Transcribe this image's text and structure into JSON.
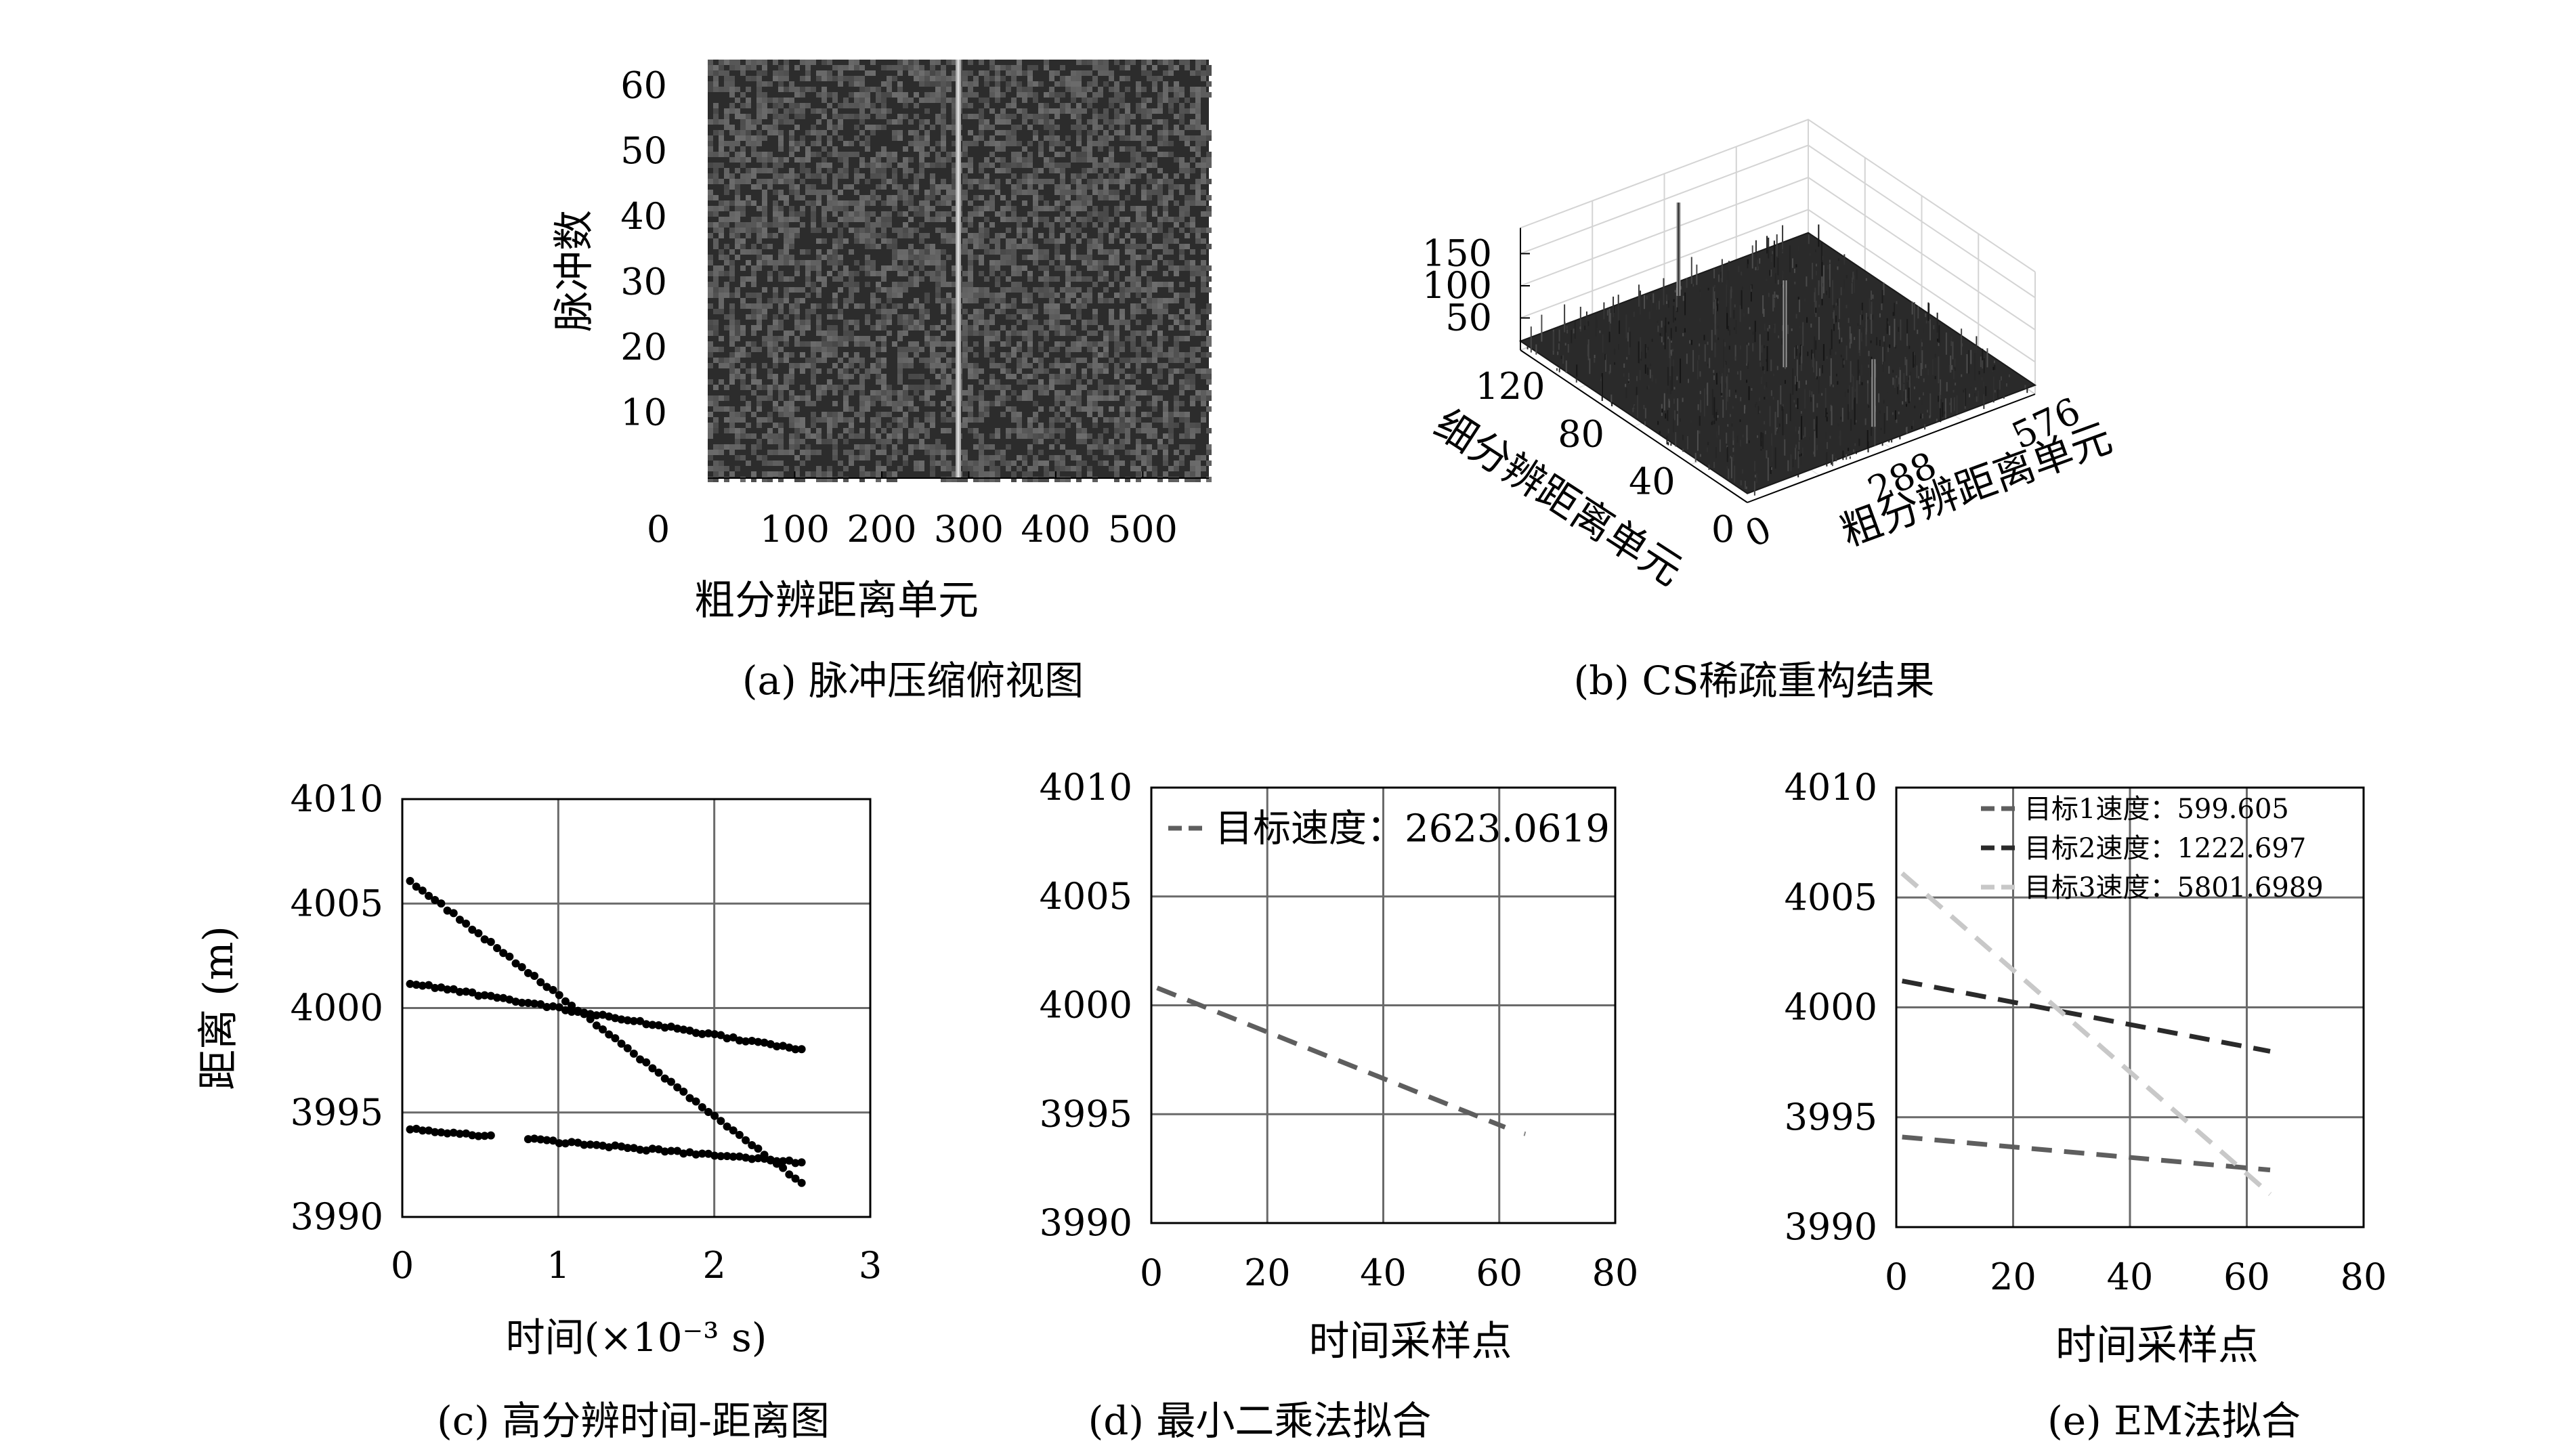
{
  "chart_data": [
    {
      "id": "a",
      "type": "heatmap",
      "caption": "(a) 脉冲压缩俯视图",
      "xlabel": "粗分辨距离单元",
      "ylabel": "脉冲数",
      "xticks": [
        0,
        100,
        200,
        300,
        400,
        500
      ],
      "yticks": [
        10,
        20,
        30,
        40,
        50,
        60
      ],
      "xlim": [
        0,
        576
      ],
      "ylim": [
        0,
        64
      ],
      "bright_column_x": 288
    },
    {
      "id": "b",
      "type": "surface3d",
      "caption": "(b) CS稀疏重构结果",
      "xlabel": "粗分辨距离单元",
      "ylabel": "细分辨距离单元",
      "zticks": [
        50,
        100,
        150
      ],
      "xticks": [
        "0",
        "288",
        "576"
      ],
      "yticks": [
        "0",
        "40",
        "80",
        "120"
      ],
      "peaks": [
        {
          "fine": 120,
          "coarse": 288,
          "height": 160
        },
        {
          "fine": 60,
          "coarse": 288,
          "height": 150
        },
        {
          "fine": 10,
          "coarse": 288,
          "height": 120
        }
      ]
    },
    {
      "id": "c",
      "type": "scatter",
      "caption": "(c) 高分辨时间-距离图",
      "xlabel": "时间(×10⁻³ s)",
      "ylabel": "距离 (m)",
      "xticks": [
        0,
        1,
        2,
        3
      ],
      "yticks": [
        3990,
        3995,
        4000,
        4005,
        4010
      ],
      "xlim": [
        0,
        3
      ],
      "ylim": [
        3990,
        4010
      ],
      "series": [
        {
          "x_start": 0.05,
          "y_start": 4006.1,
          "x_end": 2.56,
          "y_end": 3991.6,
          "points": 64
        },
        {
          "x_start": 0.05,
          "y_start": 4001.2,
          "x_end": 2.56,
          "y_end": 3998.0,
          "points": 64
        },
        {
          "x_start": 0.05,
          "y_start": 3994.2,
          "x_end": 2.56,
          "y_end": 3992.6,
          "points": 64,
          "gap": [
            0.58,
            0.78
          ]
        }
      ]
    },
    {
      "id": "d",
      "type": "line",
      "caption": "(d) 最小二乘法拟合",
      "xlabel": "时间采样点",
      "ylabel": "",
      "xticks": [
        0,
        20,
        40,
        60,
        80
      ],
      "yticks": [
        3990,
        3995,
        4000,
        4005,
        4010
      ],
      "xlim": [
        0,
        80
      ],
      "ylim": [
        3990,
        4010
      ],
      "legend": "top-left",
      "series": [
        {
          "name": "目标速度：2623.0619",
          "x": [
            1,
            61
          ],
          "y": [
            4000.8,
            3994.4
          ],
          "color": "#5e5e5e",
          "dash": true
        }
      ]
    },
    {
      "id": "e",
      "type": "line",
      "caption": "(e) EM法拟合",
      "xlabel": "时间采样点",
      "ylabel": "",
      "xticks": [
        0,
        20,
        40,
        60,
        80
      ],
      "yticks": [
        3990,
        3995,
        4000,
        4005,
        4010
      ],
      "xlim": [
        0,
        80
      ],
      "ylim": [
        3990,
        4010
      ],
      "legend": "top-left",
      "series": [
        {
          "name": "目标1速度：599.605",
          "x": [
            1,
            64
          ],
          "y": [
            3994.1,
            3992.6
          ],
          "color": "#5e5e5e",
          "dash": true
        },
        {
          "name": "目标2速度：1222.697",
          "x": [
            1,
            64
          ],
          "y": [
            4001.2,
            3998.0
          ],
          "color": "#2a2a2a",
          "dash": true
        },
        {
          "name": "目标3速度：5801.6989",
          "x": [
            1,
            64
          ],
          "y": [
            4006.1,
            3991.5
          ],
          "color": "#c8c8c8",
          "dash": true
        }
      ]
    }
  ]
}
